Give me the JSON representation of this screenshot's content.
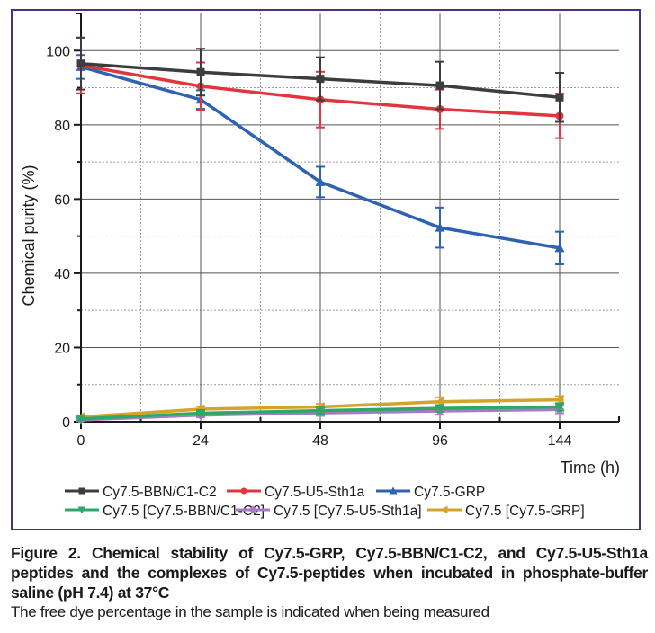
{
  "chart_data": {
    "type": "line",
    "title": "",
    "xlabel": "Time (h)",
    "ylabel": "Chemical purity (%)",
    "x": [
      0,
      24,
      48,
      96,
      144
    ],
    "x_ticks": [
      "0",
      "24",
      "48",
      "96",
      "144"
    ],
    "x_scale": "categorical-evenly-spaced",
    "ylim": [
      0,
      110
    ],
    "y_ticks": [
      0,
      20,
      40,
      60,
      80,
      100
    ],
    "grid": true,
    "legend_position": "bottom",
    "series": [
      {
        "name": "Cy7.5-BBN/C1-C2",
        "color": "#3d3d3d",
        "marker": "square",
        "values": [
          96.5,
          94.2,
          92.4,
          90.6,
          87.4
        ],
        "error": [
          7.0,
          6.3,
          5.8,
          6.4,
          6.6
        ]
      },
      {
        "name": "Cy7.5-U5-Sth1a",
        "color": "#e2363e",
        "marker": "circle",
        "values": [
          96.0,
          90.4,
          86.8,
          84.2,
          82.4
        ],
        "error": [
          7.5,
          6.4,
          7.5,
          5.3,
          6.0
        ]
      },
      {
        "name": "Cy7.5-GRP",
        "color": "#2e62b3",
        "marker": "triangle-up",
        "values": [
          95.6,
          86.8,
          64.6,
          52.3,
          46.8
        ],
        "error": [
          3.2,
          2.5,
          4.1,
          5.4,
          4.4
        ]
      },
      {
        "name": "Cy7.5 [Cy7.5-BBN/C1-C2]",
        "color": "#2ea86a",
        "marker": "triangle-down",
        "values": [
          0.8,
          2.3,
          3.0,
          3.6,
          4.0
        ],
        "error": [
          0.4,
          0.6,
          0.8,
          0.9,
          1.0
        ]
      },
      {
        "name": "Cy7.5 [Cy7.5-U5-Sth1a]",
        "color": "#a87ac4",
        "marker": "diamond",
        "values": [
          0.5,
          1.8,
          2.4,
          2.9,
          3.3
        ],
        "error": [
          0.3,
          0.6,
          0.8,
          1.0,
          1.0
        ]
      },
      {
        "name": "Cy7.5 [Cy7.5-GRP]",
        "color": "#d4a32a",
        "marker": "triangle-left",
        "values": [
          1.3,
          3.4,
          4.0,
          5.4,
          5.9
        ],
        "error": [
          0.4,
          0.7,
          0.8,
          1.2,
          1.0
        ]
      }
    ]
  },
  "caption": {
    "title": "Figure 2. Chemical stability of Cy7.5-GRP, Cy7.5-BBN/C1-C2, and Cy7.5-U5-Sth1a peptides and the complexes of Cy7.5-peptides when incubated in phosphate-buffer saline (pH 7.4) at 37°C",
    "note": "The free dye percentage in the sample is indicated when being measured"
  },
  "colors": {
    "frame": "#4b2d8a",
    "axis": "#1a1a1a",
    "major_grid": "#555555",
    "minor_grid": "#9a9a9a"
  }
}
